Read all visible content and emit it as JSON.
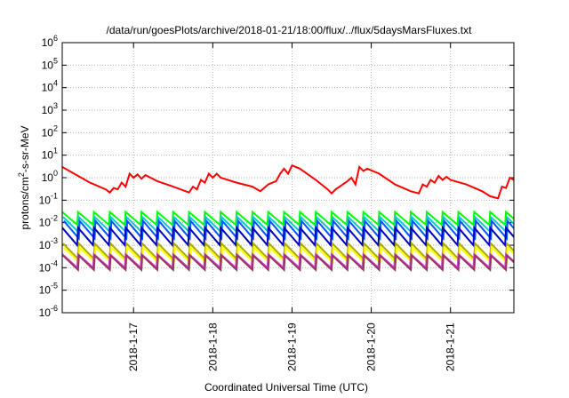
{
  "chart_data": {
    "type": "line",
    "title": "/data/run/goesPlots/archive/2018-01-21/18:00/flux/../flux/5daysMarsFluxes.txt",
    "xlabel": "Coordinated Universal Time (UTC)",
    "ylabel": {
      "pre": "protons/cm",
      "sup": "2",
      "post": "-s-sr-MeV"
    },
    "x_range_days": [
      -0.9,
      4.8
    ],
    "y_log_range": [
      -6,
      6
    ],
    "y_scale": "log",
    "grid": true,
    "x_ticks": [
      {
        "label": "2018-1-17",
        "pos": 0
      },
      {
        "label": "2018-1-18",
        "pos": 1
      },
      {
        "label": "2018-1-19",
        "pos": 2
      },
      {
        "label": "2018-1-20",
        "pos": 3
      },
      {
        "label": "2018-1-21",
        "pos": 4
      }
    ],
    "y_ticks": [
      {
        "base": "10",
        "exp": "6",
        "log": 6
      },
      {
        "base": "10",
        "exp": "5",
        "log": 5
      },
      {
        "base": "10",
        "exp": "4",
        "log": 4
      },
      {
        "base": "10",
        "exp": "3",
        "log": 3
      },
      {
        "base": "10",
        "exp": "2",
        "log": 2
      },
      {
        "base": "10",
        "exp": "1",
        "log": 1
      },
      {
        "base": "10",
        "exp": "0",
        "log": 0
      },
      {
        "base": "10",
        "exp": "-1",
        "log": -1
      },
      {
        "base": "10",
        "exp": "-2",
        "log": -2
      },
      {
        "base": "10",
        "exp": "-3",
        "log": -3
      },
      {
        "base": "10",
        "exp": "-4",
        "log": -4
      },
      {
        "base": "10",
        "exp": "-5",
        "log": -5
      },
      {
        "base": "10",
        "exp": "-6",
        "log": -6
      }
    ],
    "series": [
      {
        "color": "#ff0000",
        "width": 2,
        "points": [
          [
            -0.9,
            3.0
          ],
          [
            -0.7,
            1.2
          ],
          [
            -0.55,
            0.6
          ],
          [
            -0.35,
            0.3
          ],
          [
            -0.3,
            0.22
          ],
          [
            -0.25,
            0.35
          ],
          [
            -0.2,
            0.3
          ],
          [
            -0.15,
            0.6
          ],
          [
            -0.1,
            0.4
          ],
          [
            -0.05,
            1.5
          ],
          [
            0.0,
            1.0
          ],
          [
            0.05,
            1.4
          ],
          [
            0.1,
            0.9
          ],
          [
            0.15,
            1.3
          ],
          [
            0.3,
            0.7
          ],
          [
            0.5,
            0.4
          ],
          [
            0.7,
            0.22
          ],
          [
            0.75,
            0.4
          ],
          [
            0.8,
            0.3
          ],
          [
            0.85,
            0.8
          ],
          [
            0.9,
            0.6
          ],
          [
            0.95,
            1.5
          ],
          [
            1.0,
            1.0
          ],
          [
            1.05,
            1.5
          ],
          [
            1.1,
            1.0
          ],
          [
            1.3,
            0.6
          ],
          [
            1.5,
            0.4
          ],
          [
            1.6,
            0.25
          ],
          [
            1.7,
            0.5
          ],
          [
            1.8,
            0.7
          ],
          [
            1.85,
            1.5
          ],
          [
            1.9,
            2.5
          ],
          [
            1.95,
            1.5
          ],
          [
            2.0,
            3.5
          ],
          [
            2.1,
            2.5
          ],
          [
            2.3,
            0.8
          ],
          [
            2.45,
            0.3
          ],
          [
            2.5,
            0.2
          ],
          [
            2.55,
            0.3
          ],
          [
            2.7,
            0.7
          ],
          [
            2.75,
            1.0
          ],
          [
            2.8,
            0.5
          ],
          [
            2.85,
            3.0
          ],
          [
            2.9,
            2.0
          ],
          [
            2.95,
            2.5
          ],
          [
            3.1,
            1.5
          ],
          [
            3.3,
            0.5
          ],
          [
            3.5,
            0.25
          ],
          [
            3.6,
            0.2
          ],
          [
            3.65,
            0.5
          ],
          [
            3.7,
            0.4
          ],
          [
            3.75,
            0.8
          ],
          [
            3.8,
            0.6
          ],
          [
            3.85,
            1.2
          ],
          [
            3.9,
            0.8
          ],
          [
            3.95,
            1.1
          ],
          [
            4.0,
            0.8
          ],
          [
            4.2,
            0.5
          ],
          [
            4.4,
            0.25
          ],
          [
            4.5,
            0.15
          ],
          [
            4.6,
            0.12
          ],
          [
            4.65,
            0.4
          ],
          [
            4.7,
            0.35
          ],
          [
            4.75,
            1.0
          ],
          [
            4.8,
            0.8
          ]
        ]
      }
    ],
    "sawtooth_series": [
      {
        "color": "#00ff00",
        "peak": 0.03,
        "trough": 0.008
      },
      {
        "color": "#00cccc",
        "peak": 0.018,
        "trough": 0.004
      },
      {
        "color": "#0055ff",
        "peak": 0.012,
        "trough": 0.002
      },
      {
        "color": "#0000bb",
        "peak": 0.006,
        "trough": 0.001
      },
      {
        "color": "#aaaa00",
        "peak": 0.0012,
        "trough": 0.00025
      },
      {
        "color": "#ffff00",
        "peak": 0.0008,
        "trough": 0.00018
      },
      {
        "color": "#cc44cc",
        "peak": 0.0004,
        "trough": 0.0001
      },
      {
        "color": "#993366",
        "peak": 0.00035,
        "trough": 8e-05
      }
    ],
    "sawtooth_period_days": 0.2
  }
}
